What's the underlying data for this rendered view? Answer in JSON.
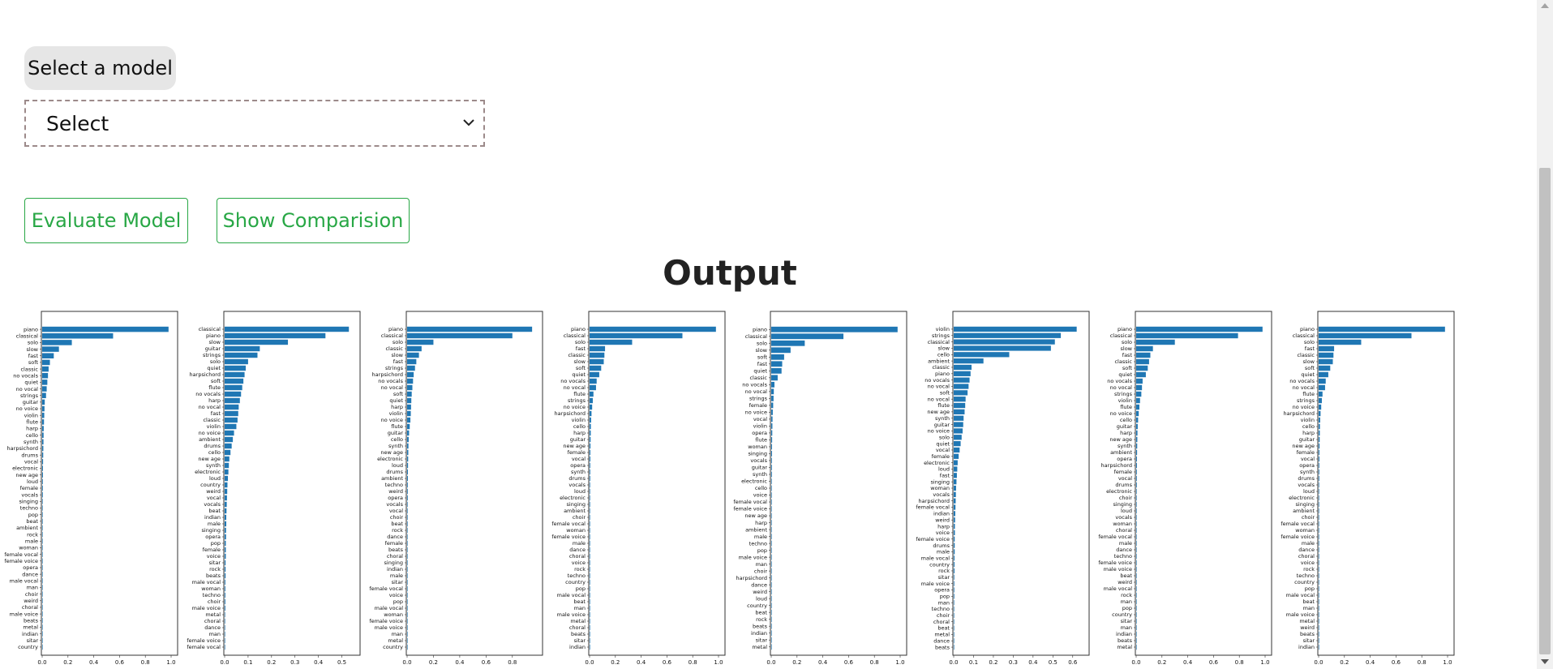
{
  "form": {
    "select_label": "Select a model",
    "select_value": "Select",
    "evaluate_button": "Evaluate Model",
    "comparison_button": "Show Comparision"
  },
  "output": {
    "title": "Output"
  },
  "colors": {
    "bar": "#1f77b4",
    "button_green": "#28a745"
  },
  "chart_data": [
    {
      "type": "bar",
      "orientation": "horizontal",
      "xlim": [
        0,
        1.0
      ],
      "xticks": [
        "0.0",
        "0.2",
        "0.4",
        "0.6",
        "0.8",
        "1.0"
      ],
      "categories": [
        "piano",
        "classical",
        "solo",
        "slow",
        "fast",
        "soft",
        "classic",
        "no vocals",
        "quiet",
        "no vocal",
        "strings",
        "guitar",
        "no voice",
        "violin",
        "flute",
        "harp",
        "cello",
        "synth",
        "harpsichord",
        "drums",
        "vocal",
        "electronic",
        "new age",
        "loud",
        "female",
        "vocals",
        "singing",
        "techno",
        "pop",
        "beat",
        "ambient",
        "rock",
        "male",
        "woman",
        "female vocal",
        "female voice",
        "opera",
        "dance",
        "male vocal",
        "man",
        "choir",
        "weird",
        "choral",
        "male voice",
        "beats",
        "metal",
        "indian",
        "sitar",
        "country"
      ],
      "values": [
        0.98,
        0.55,
        0.23,
        0.13,
        0.09,
        0.06,
        0.05,
        0.045,
        0.04,
        0.035,
        0.03,
        0.02,
        0.018,
        0.016,
        0.014,
        0.012,
        0.011,
        0.01,
        0.009,
        0.008,
        0.007,
        0.006,
        0.006,
        0.005,
        0.005,
        0.005,
        0.004,
        0.004,
        0.004,
        0.004,
        0.003,
        0.003,
        0.003,
        0.003,
        0.003,
        0.003,
        0.002,
        0.002,
        0.002,
        0.002,
        0.002,
        0.002,
        0.002,
        0.002,
        0.001,
        0.001,
        0.001,
        0.001,
        0.001
      ]
    },
    {
      "type": "bar",
      "orientation": "horizontal",
      "xlim": [
        0,
        0.55
      ],
      "xticks": [
        "0.0",
        "0.1",
        "0.2",
        "0.3",
        "0.4",
        "0.5"
      ],
      "categories": [
        "classical",
        "piano",
        "slow",
        "guitar",
        "strings",
        "solo",
        "quiet",
        "harpsichord",
        "soft",
        "flute",
        "no vocals",
        "harp",
        "no vocal",
        "fast",
        "classic",
        "violin",
        "no voice",
        "ambient",
        "drums",
        "cello",
        "new age",
        "synth",
        "electronic",
        "loud",
        "country",
        "weird",
        "vocal",
        "vocals",
        "beat",
        "indian",
        "male",
        "singing",
        "opera",
        "pop",
        "female",
        "voice",
        "sitar",
        "rock",
        "beats",
        "male vocal",
        "woman",
        "techno",
        "choir",
        "male voice",
        "metal",
        "choral",
        "dance",
        "man",
        "female voice",
        "female vocal"
      ],
      "values": [
        0.53,
        0.43,
        0.27,
        0.15,
        0.14,
        0.1,
        0.09,
        0.085,
        0.08,
        0.075,
        0.07,
        0.065,
        0.06,
        0.058,
        0.055,
        0.05,
        0.04,
        0.035,
        0.03,
        0.025,
        0.02,
        0.018,
        0.016,
        0.014,
        0.012,
        0.011,
        0.01,
        0.009,
        0.008,
        0.007,
        0.007,
        0.006,
        0.006,
        0.005,
        0.005,
        0.005,
        0.004,
        0.004,
        0.004,
        0.003,
        0.003,
        0.003,
        0.003,
        0.003,
        0.002,
        0.002,
        0.002,
        0.002,
        0.002,
        0.001
      ]
    },
    {
      "type": "bar",
      "orientation": "horizontal",
      "xlim": [
        0,
        0.98
      ],
      "xticks": [
        "0.0",
        "0.2",
        "0.4",
        "0.6",
        "0.8"
      ],
      "categories": [
        "piano",
        "classical",
        "solo",
        "classic",
        "slow",
        "fast",
        "strings",
        "harpsichord",
        "no vocals",
        "no vocal",
        "soft",
        "quiet",
        "harp",
        "violin",
        "no voice",
        "flute",
        "guitar",
        "cello",
        "synth",
        "new age",
        "electronic",
        "loud",
        "drums",
        "ambient",
        "techno",
        "weird",
        "opera",
        "vocals",
        "vocal",
        "choir",
        "beat",
        "rock",
        "dance",
        "female",
        "beats",
        "choral",
        "singing",
        "indian",
        "male",
        "sitar",
        "female vocal",
        "voice",
        "pop",
        "male vocal",
        "woman",
        "female voice",
        "male voice",
        "man",
        "metal",
        "country"
      ],
      "values": [
        0.95,
        0.8,
        0.2,
        0.11,
        0.09,
        0.07,
        0.06,
        0.05,
        0.045,
        0.04,
        0.035,
        0.032,
        0.03,
        0.028,
        0.025,
        0.02,
        0.015,
        0.012,
        0.01,
        0.009,
        0.008,
        0.007,
        0.006,
        0.006,
        0.005,
        0.005,
        0.005,
        0.004,
        0.004,
        0.004,
        0.004,
        0.003,
        0.003,
        0.003,
        0.003,
        0.003,
        0.002,
        0.002,
        0.002,
        0.002,
        0.002,
        0.002,
        0.002,
        0.002,
        0.001,
        0.001,
        0.001,
        0.001,
        0.001,
        0.001
      ]
    },
    {
      "type": "bar",
      "orientation": "horizontal",
      "xlim": [
        0,
        1.0
      ],
      "xticks": [
        "0.0",
        "0.2",
        "0.4",
        "0.6",
        "0.8",
        "1.0"
      ],
      "categories": [
        "piano",
        "classical",
        "solo",
        "fast",
        "classic",
        "slow",
        "soft",
        "quiet",
        "no vocals",
        "no vocal",
        "flute",
        "strings",
        "no voice",
        "harpsichord",
        "violin",
        "cello",
        "harp",
        "guitar",
        "new age",
        "female",
        "vocal",
        "opera",
        "synth",
        "drums",
        "vocals",
        "loud",
        "electronic",
        "singing",
        "ambient",
        "choir",
        "female vocal",
        "woman",
        "female voice",
        "male",
        "dance",
        "choral",
        "voice",
        "rock",
        "techno",
        "country",
        "pop",
        "male vocal",
        "beat",
        "man",
        "male voice",
        "metal",
        "choral",
        "beats",
        "sitar",
        "indian"
      ],
      "values": [
        0.98,
        0.72,
        0.33,
        0.12,
        0.115,
        0.11,
        0.09,
        0.075,
        0.055,
        0.05,
        0.03,
        0.025,
        0.02,
        0.015,
        0.012,
        0.01,
        0.009,
        0.008,
        0.007,
        0.006,
        0.006,
        0.005,
        0.005,
        0.005,
        0.004,
        0.004,
        0.004,
        0.004,
        0.003,
        0.003,
        0.003,
        0.003,
        0.003,
        0.003,
        0.002,
        0.002,
        0.002,
        0.002,
        0.002,
        0.002,
        0.002,
        0.002,
        0.001,
        0.001,
        0.001,
        0.001,
        0.001,
        0.001,
        0.001,
        0.001
      ]
    },
    {
      "type": "bar",
      "orientation": "horizontal",
      "xlim": [
        0,
        1.0
      ],
      "xticks": [
        "0.0",
        "0.2",
        "0.4",
        "0.6",
        "0.8",
        "1.0"
      ],
      "categories": [
        "piano",
        "classical",
        "solo",
        "slow",
        "soft",
        "fast",
        "quiet",
        "classic",
        "no vocals",
        "no vocal",
        "strings",
        "female",
        "no voice",
        "vocal",
        "violin",
        "opera",
        "flute",
        "woman",
        "singing",
        "vocals",
        "guitar",
        "synth",
        "electronic",
        "cello",
        "voice",
        "female vocal",
        "female voice",
        "new age",
        "harp",
        "ambient",
        "male",
        "techno",
        "pop",
        "male voice",
        "man",
        "choir",
        "harpsichord",
        "dance",
        "weird",
        "loud",
        "country",
        "beat",
        "rock",
        "beats",
        "indian",
        "sitar",
        "metal"
      ],
      "values": [
        0.98,
        0.56,
        0.26,
        0.15,
        0.1,
        0.085,
        0.08,
        0.05,
        0.025,
        0.02,
        0.018,
        0.015,
        0.012,
        0.01,
        0.009,
        0.008,
        0.007,
        0.006,
        0.006,
        0.005,
        0.005,
        0.005,
        0.004,
        0.004,
        0.004,
        0.004,
        0.003,
        0.003,
        0.003,
        0.003,
        0.003,
        0.003,
        0.002,
        0.002,
        0.002,
        0.002,
        0.002,
        0.002,
        0.002,
        0.002,
        0.001,
        0.001,
        0.001,
        0.001,
        0.001,
        0.001,
        0.001
      ]
    },
    {
      "type": "bar",
      "orientation": "horizontal",
      "xlim": [
        0,
        0.65
      ],
      "xticks": [
        "0.0",
        "0.1",
        "0.2",
        "0.3",
        "0.4",
        "0.5",
        "0.6"
      ],
      "categories": [
        "violin",
        "strings",
        "classical",
        "slow",
        "cello",
        "ambient",
        "classic",
        "piano",
        "no vocals",
        "no vocal",
        "soft",
        "no vocal",
        "flute",
        "new age",
        "synth",
        "guitar",
        "no voice",
        "solo",
        "quiet",
        "vocal",
        "female",
        "electronic",
        "loud",
        "fast",
        "singing",
        "woman",
        "vocals",
        "harpsichord",
        "female vocal",
        "indian",
        "weird",
        "harp",
        "voice",
        "female voice",
        "drums",
        "male",
        "male vocal",
        "country",
        "rock",
        "sitar",
        "male voice",
        "opera",
        "pop",
        "man",
        "techno",
        "choir",
        "choral",
        "beat",
        "metal",
        "dance",
        "beats"
      ],
      "values": [
        0.62,
        0.54,
        0.51,
        0.49,
        0.28,
        0.15,
        0.09,
        0.085,
        0.08,
        0.075,
        0.07,
        0.06,
        0.058,
        0.055,
        0.05,
        0.048,
        0.045,
        0.04,
        0.035,
        0.03,
        0.025,
        0.02,
        0.018,
        0.016,
        0.014,
        0.012,
        0.011,
        0.01,
        0.009,
        0.008,
        0.007,
        0.006,
        0.006,
        0.005,
        0.005,
        0.005,
        0.004,
        0.004,
        0.004,
        0.003,
        0.003,
        0.003,
        0.003,
        0.002,
        0.002,
        0.002,
        0.002,
        0.002,
        0.001,
        0.001,
        0.001
      ]
    },
    {
      "type": "bar",
      "orientation": "horizontal",
      "xlim": [
        0,
        1.0
      ],
      "xticks": [
        "0.0",
        "0.2",
        "0.4",
        "0.6",
        "0.8",
        "1.0"
      ],
      "categories": [
        "piano",
        "classical",
        "solo",
        "slow",
        "fast",
        "classic",
        "soft",
        "quiet",
        "no vocals",
        "no vocal",
        "strings",
        "violin",
        "flute",
        "no voice",
        "cello",
        "guitar",
        "harp",
        "new age",
        "synth",
        "ambient",
        "opera",
        "harpsichord",
        "female",
        "vocal",
        "drums",
        "electronic",
        "choir",
        "singing",
        "loud",
        "vocals",
        "woman",
        "choral",
        "female vocal",
        "male",
        "dance",
        "techno",
        "female voice",
        "male voice",
        "beat",
        "weird",
        "male vocal",
        "rock",
        "man",
        "pop",
        "country",
        "sitar",
        "man",
        "indian",
        "beats",
        "metal"
      ],
      "values": [
        0.98,
        0.79,
        0.3,
        0.13,
        0.11,
        0.1,
        0.09,
        0.075,
        0.05,
        0.045,
        0.04,
        0.03,
        0.025,
        0.02,
        0.015,
        0.012,
        0.01,
        0.009,
        0.008,
        0.007,
        0.006,
        0.006,
        0.005,
        0.005,
        0.005,
        0.004,
        0.004,
        0.004,
        0.004,
        0.003,
        0.003,
        0.003,
        0.003,
        0.003,
        0.002,
        0.002,
        0.002,
        0.002,
        0.002,
        0.002,
        0.002,
        0.002,
        0.001,
        0.001,
        0.001,
        0.001,
        0.001,
        0.001,
        0.001,
        0.001
      ]
    },
    {
      "type": "bar",
      "orientation": "horizontal",
      "xlim": [
        0,
        1.0
      ],
      "xticks": [
        "0.0",
        "0.2",
        "0.4",
        "0.6",
        "0.8",
        "1.0"
      ],
      "categories": [
        "piano",
        "classical",
        "solo",
        "fast",
        "classic",
        "slow",
        "soft",
        "quiet",
        "no vocals",
        "no vocal",
        "flute",
        "strings",
        "no voice",
        "harpsichord",
        "violin",
        "cello",
        "harp",
        "guitar",
        "new age",
        "female",
        "vocal",
        "opera",
        "synth",
        "drums",
        "vocals",
        "loud",
        "electronic",
        "singing",
        "ambient",
        "choir",
        "female vocal",
        "woman",
        "female voice",
        "male",
        "dance",
        "choral",
        "voice",
        "rock",
        "techno",
        "country",
        "pop",
        "male vocal",
        "beat",
        "man",
        "male voice",
        "metal",
        "weird",
        "beats",
        "sitar",
        "indian"
      ],
      "values": [
        0.98,
        0.72,
        0.33,
        0.12,
        0.115,
        0.11,
        0.09,
        0.075,
        0.055,
        0.05,
        0.03,
        0.025,
        0.02,
        0.015,
        0.012,
        0.01,
        0.009,
        0.008,
        0.007,
        0.006,
        0.006,
        0.005,
        0.005,
        0.005,
        0.004,
        0.004,
        0.004,
        0.004,
        0.003,
        0.003,
        0.003,
        0.003,
        0.003,
        0.003,
        0.002,
        0.002,
        0.002,
        0.002,
        0.002,
        0.002,
        0.002,
        0.002,
        0.001,
        0.001,
        0.001,
        0.001,
        0.001,
        0.001,
        0.001,
        0.001
      ]
    }
  ]
}
